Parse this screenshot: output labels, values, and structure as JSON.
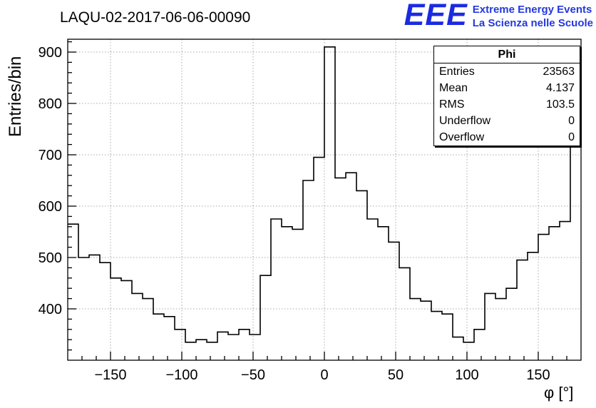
{
  "logo": {
    "acronym": "EEE",
    "line1": "Extreme Energy Events",
    "line2": "La Scienza nelle Scuole"
  },
  "stats_box": {
    "title": "Phi",
    "rows": [
      {
        "label": "Entries",
        "value": "23563"
      },
      {
        "label": "Mean",
        "value": "4.137"
      },
      {
        "label": "RMS",
        "value": "103.5"
      },
      {
        "label": "Underflow",
        "value": "0"
      },
      {
        "label": "Overflow",
        "value": "0"
      }
    ]
  },
  "colors": {
    "logo_blue": "#1b2ae0",
    "logo_text_blue": "#2438e0",
    "grid": "#aaaaaa",
    "histogram_line": "#000000"
  },
  "chart_data": {
    "type": "bar",
    "subtype": "step-histogram",
    "title": "LAQU-02-2017-06-06-00090",
    "xlabel": "φ [°]",
    "ylabel": "Entries/bin",
    "xlim": [
      -180,
      180
    ],
    "ylim": [
      300,
      925
    ],
    "x_ticks": [
      -150,
      -100,
      -50,
      0,
      50,
      100,
      150
    ],
    "y_ticks": [
      400,
      500,
      600,
      700,
      800,
      900
    ],
    "x_minor_step": 10,
    "y_minor_step": 20,
    "grid": true,
    "legend_position": "none",
    "bin_start": -180,
    "bin_width": 7.5,
    "values": [
      565,
      500,
      505,
      490,
      460,
      455,
      430,
      420,
      390,
      385,
      360,
      335,
      340,
      335,
      355,
      350,
      360,
      350,
      465,
      575,
      560,
      555,
      650,
      695,
      910,
      655,
      665,
      630,
      575,
      560,
      530,
      480,
      420,
      415,
      395,
      390,
      345,
      335,
      360,
      430,
      420,
      440,
      495,
      510,
      545,
      560,
      570,
      795
    ]
  }
}
